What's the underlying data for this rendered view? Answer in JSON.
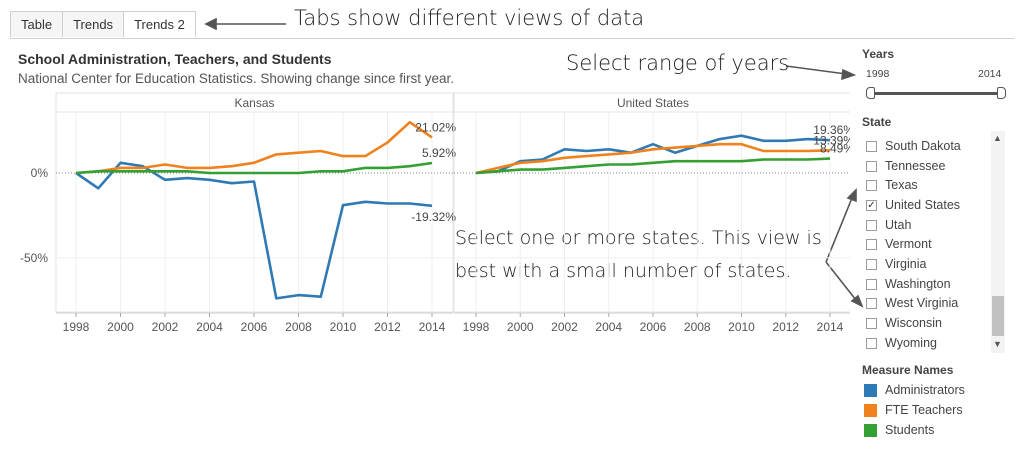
{
  "tabs": [
    {
      "label": "Table",
      "active": false
    },
    {
      "label": "Trends",
      "active": false
    },
    {
      "label": "Trends 2",
      "active": true
    }
  ],
  "annotations": {
    "tabs_note": "Tabs show different views of data",
    "years_note": "Select range of years",
    "states_note_line1": "Select one or more states. This view is",
    "states_note_line2": "best with a small number of states."
  },
  "years_filter": {
    "title": "Years",
    "min_label": "1998",
    "max_label": "2014",
    "selected_start": 1998,
    "selected_end": 2014
  },
  "state_filter": {
    "title": "State",
    "items": [
      {
        "label": "South Dakota",
        "checked": false
      },
      {
        "label": "Tennessee",
        "checked": false
      },
      {
        "label": "Texas",
        "checked": false
      },
      {
        "label": "United States",
        "checked": true
      },
      {
        "label": "Utah",
        "checked": false
      },
      {
        "label": "Vermont",
        "checked": false
      },
      {
        "label": "Virginia",
        "checked": false
      },
      {
        "label": "Washington",
        "checked": false
      },
      {
        "label": "West Virginia",
        "checked": false
      },
      {
        "label": "Wisconsin",
        "checked": false
      },
      {
        "label": "Wyoming",
        "checked": false
      }
    ]
  },
  "legend": {
    "title": "Measure Names",
    "items": [
      {
        "label": "Administrators",
        "color": "#2f79b4"
      },
      {
        "label": "FTE Teachers",
        "color": "#f0821e"
      },
      {
        "label": "Students",
        "color": "#34a033"
      }
    ]
  },
  "colors": {
    "administrators": "#2f79b4",
    "fte_teachers": "#f0821e",
    "students": "#34a033"
  },
  "chart_data": {
    "type": "line",
    "title": "School Administration, Teachers, and Students",
    "subtitle": "National Center for Education Statistics. Showing change since first year.",
    "x": [
      1998,
      1999,
      2000,
      2001,
      2002,
      2003,
      2004,
      2005,
      2006,
      2007,
      2008,
      2009,
      2010,
      2011,
      2012,
      2013,
      2014
    ],
    "x_ticks": [
      1998,
      2000,
      2002,
      2004,
      2006,
      2008,
      2010,
      2012,
      2014
    ],
    "x_tick_labels": [
      "1998",
      "2000",
      "2002",
      "2004",
      "2006",
      "2008",
      "2010",
      "2012",
      "2014"
    ],
    "y_ticks": [
      0,
      -50
    ],
    "y_tick_labels": [
      "0%",
      "-50%"
    ],
    "ylim": [
      -82,
      36
    ],
    "grid": true,
    "panels": [
      {
        "name": "Kansas",
        "series": [
          {
            "name": "Administrators",
            "values": [
              0,
              -9,
              6,
              4,
              -4,
              -3,
              -4,
              -6,
              -5,
              -74,
              -72,
              -73,
              -19,
              -17,
              -18,
              -18,
              -19.32
            ],
            "end_label": "-19.32%"
          },
          {
            "name": "FTE Teachers",
            "values": [
              0,
              1,
              3,
              3,
              5,
              3,
              3,
              4,
              6,
              11,
              12,
              13,
              10,
              10,
              18,
              30,
              21.02
            ],
            "end_label": "21.02%"
          },
          {
            "name": "Students",
            "values": [
              0,
              1,
              1,
              1,
              1,
              1,
              0,
              0,
              0,
              0,
              0,
              1,
              1,
              3,
              3,
              4,
              5.92
            ],
            "end_label": "5.92%"
          }
        ]
      },
      {
        "name": "United States",
        "series": [
          {
            "name": "Administrators",
            "values": [
              0,
              1,
              7,
              8,
              14,
              13,
              14,
              12,
              17,
              12,
              16,
              20,
              22,
              19,
              19,
              20,
              19.36
            ],
            "end_label": "19.36%"
          },
          {
            "name": "FTE Teachers",
            "values": [
              0,
              3,
              6,
              7,
              9,
              10,
              11,
              12,
              14,
              15,
              16,
              17,
              17,
              13,
              13,
              13,
              13.39
            ],
            "end_label": "13.39%"
          },
          {
            "name": "Students",
            "values": [
              0,
              1,
              2,
              2,
              3,
              4,
              5,
              5,
              6,
              7,
              7,
              7,
              7,
              8,
              8,
              8,
              8.49
            ],
            "end_label": "8.49%"
          }
        ]
      }
    ]
  }
}
